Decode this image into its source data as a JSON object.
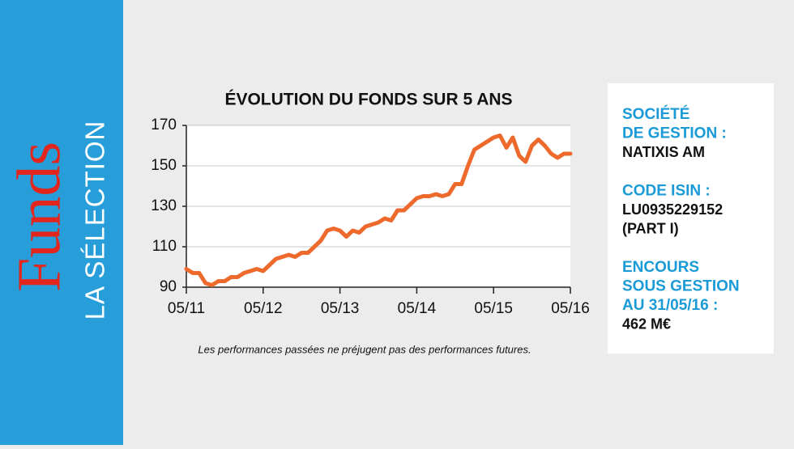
{
  "sidebar": {
    "brand": "Funds",
    "subtitle": "LA SÉLECTION"
  },
  "chart_data": {
    "type": "line",
    "title": "ÉVOLUTION DU FONDS SUR 5 ANS",
    "x": [
      0,
      1,
      2,
      3,
      4,
      5,
      6,
      7,
      8,
      9,
      10,
      11,
      12,
      13,
      14,
      15,
      16,
      17,
      18,
      19,
      20,
      21,
      22,
      23,
      24,
      25,
      26,
      27,
      28,
      29,
      30,
      31,
      32,
      33,
      34,
      35,
      36,
      37,
      38,
      39,
      40,
      41,
      42,
      43,
      44,
      45,
      46,
      47,
      48,
      49,
      50,
      51,
      52,
      53,
      54,
      55,
      56,
      57,
      58,
      59,
      60
    ],
    "series": [
      {
        "color": "#ee6a2c",
        "values": [
          99,
          97,
          97,
          92,
          91,
          93,
          93,
          95,
          95,
          97,
          98,
          99,
          98,
          101,
          104,
          105,
          106,
          105,
          107,
          107,
          110,
          113,
          118,
          119,
          118,
          115,
          118,
          117,
          120,
          121,
          122,
          124,
          123,
          128,
          128,
          131,
          134,
          135,
          135,
          136,
          135,
          136,
          141,
          141,
          150,
          158,
          160,
          162,
          164,
          165,
          159,
          164,
          155,
          152,
          160,
          163,
          160,
          156,
          154,
          156,
          156
        ]
      }
    ],
    "xlim": [
      0,
      60
    ],
    "xticks": [
      {
        "value": 0,
        "label": "05/11"
      },
      {
        "value": 12,
        "label": "05/12"
      },
      {
        "value": 24,
        "label": "05/13"
      },
      {
        "value": 36,
        "label": "05/14"
      },
      {
        "value": 48,
        "label": "05/15"
      },
      {
        "value": 60,
        "label": "05/16"
      }
    ],
    "ylim": [
      90,
      170
    ],
    "yticks": [
      90,
      110,
      130,
      150,
      170
    ],
    "grid": true,
    "note": "Les performances passées ne préjugent pas des performances futures."
  },
  "info": [
    {
      "label": [
        "SOCIÉTÉ",
        "DE GESTION :"
      ],
      "value": [
        "NATIXIS AM"
      ]
    },
    {
      "label": [
        "CODE ISIN :"
      ],
      "value": [
        "LU0935229152",
        "(PART I)"
      ]
    },
    {
      "label": [
        "ENCOURS",
        "SOUS GESTION",
        "AU 31/05/16 :"
      ],
      "value": [
        "462 M€"
      ]
    }
  ]
}
